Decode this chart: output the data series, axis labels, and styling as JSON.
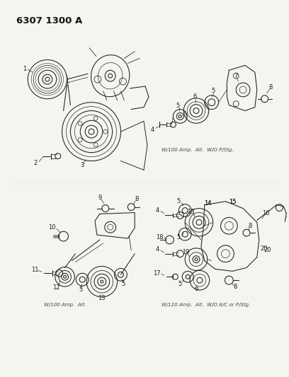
{
  "title": "6307 1300 A",
  "bg_color": "#f5f5f0",
  "text_color": "#1a1a1a",
  "caption_top_right": "W/100 Amp.  Alt.  W/O P/Stg.",
  "caption_bottom_left": "W/100 Amp.  Alt.",
  "caption_bottom_right": "W/120 Amp.  Alt.  W/O A/C or P/Stg.",
  "figsize": [
    4.08,
    5.33
  ],
  "dpi": 100,
  "lc": "#2a2a2a",
  "lw": 0.8,
  "label_fs": 6.0
}
